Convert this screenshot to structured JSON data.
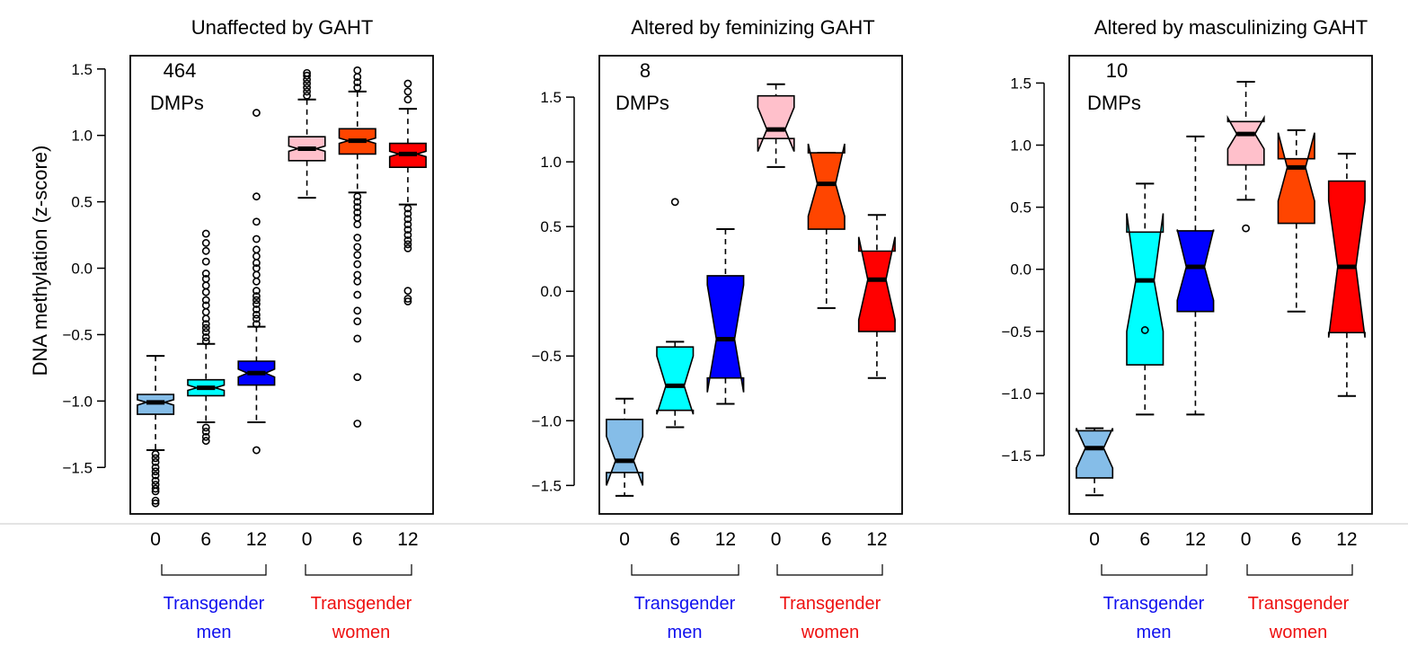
{
  "ylabel": "DNA methylation (z-score)",
  "group_labels": [
    {
      "line1": "Transgender",
      "line2": "men",
      "color": "#1010ee"
    },
    {
      "line1": "Transgender",
      "line2": "women",
      "color": "#ee1010"
    }
  ],
  "box_colors": [
    "#85bde8",
    "#00ffff",
    "#0000ff",
    "#ffc0cb",
    "#ff4500",
    "#ff0000"
  ],
  "chart_data": [
    {
      "type": "box",
      "title": "Unaffected by GAHT",
      "annotation": {
        "number": "464",
        "text": "DMPs"
      },
      "categories": [
        "0",
        "6",
        "12",
        "0",
        "6",
        "12"
      ],
      "yticks": [
        -1.5,
        -1.0,
        -0.5,
        0.0,
        0.5,
        1.0,
        1.5
      ],
      "ylim": [
        -1.85,
        1.6
      ],
      "boxes": [
        {
          "group": "Transgender men",
          "month": "0",
          "q1": -1.1,
          "median": -1.01,
          "q3": -0.95,
          "whisker_low": -1.37,
          "whisker_high": -0.66,
          "notch": [
            -1.03,
            -0.99
          ],
          "outliers": [
            -1.4,
            -1.43,
            -1.46,
            -1.5,
            -1.53,
            -1.56,
            -1.6,
            -1.63,
            -1.66,
            -1.68,
            -1.75,
            -1.77
          ]
        },
        {
          "group": "Transgender men",
          "month": "6",
          "q1": -0.96,
          "median": -0.9,
          "q3": -0.84,
          "whisker_low": -1.16,
          "whisker_high": -0.57,
          "notch": [
            -0.92,
            -0.88
          ],
          "outliers": [
            -1.2,
            -1.23,
            -1.27,
            -1.3,
            -0.55,
            -0.52,
            -0.48,
            -0.45,
            -0.42,
            -0.38,
            -0.33,
            -0.28,
            -0.24,
            -0.18,
            -0.13,
            -0.08,
            -0.04,
            0.05,
            0.13,
            0.19,
            0.26
          ]
        },
        {
          "group": "Transgender men",
          "month": "12",
          "q1": -0.88,
          "median": -0.79,
          "q3": -0.7,
          "whisker_low": -1.16,
          "whisker_high": -0.44,
          "notch": [
            -0.82,
            -0.76
          ],
          "outliers": [
            -1.37,
            -0.42,
            -0.38,
            -0.35,
            -0.31,
            -0.27,
            -0.24,
            -0.21,
            -0.17,
            -0.1,
            -0.05,
            0.0,
            0.04,
            0.09,
            0.14,
            0.22,
            0.35,
            0.54,
            1.17
          ]
        },
        {
          "group": "Transgender women",
          "month": "0",
          "q1": 0.81,
          "median": 0.9,
          "q3": 0.99,
          "whisker_low": 0.53,
          "whisker_high": 1.27,
          "notch": [
            0.88,
            0.92
          ],
          "outliers": [
            1.3,
            1.33,
            1.36,
            1.39,
            1.42,
            1.45,
            1.47
          ]
        },
        {
          "group": "Transgender women",
          "month": "6",
          "q1": 0.86,
          "median": 0.96,
          "q3": 1.05,
          "whisker_low": 0.57,
          "whisker_high": 1.33,
          "notch": [
            0.94,
            0.98
          ],
          "outliers": [
            1.36,
            1.4,
            1.44,
            1.49,
            0.54,
            0.5,
            0.46,
            0.42,
            0.38,
            0.33,
            0.23,
            0.16,
            0.1,
            0.03,
            -0.05,
            -0.1,
            -0.2,
            -0.32,
            -0.4,
            -0.53,
            -0.82,
            -1.17
          ]
        },
        {
          "group": "Transgender women",
          "month": "12",
          "q1": 0.76,
          "median": 0.86,
          "q3": 0.94,
          "whisker_low": 0.48,
          "whisker_high": 1.2,
          "notch": [
            0.84,
            0.88
          ],
          "outliers": [
            1.27,
            1.33,
            1.39,
            0.45,
            0.41,
            0.37,
            0.33,
            0.29,
            0.25,
            0.21,
            0.18,
            0.15,
            -0.17,
            -0.23,
            -0.25
          ]
        }
      ]
    },
    {
      "type": "box",
      "title": "Altered by feminizing GAHT",
      "annotation": {
        "number": "8",
        "text": "DMPs"
      },
      "categories": [
        "0",
        "6",
        "12",
        "0",
        "6",
        "12"
      ],
      "yticks": [
        -1.5,
        -1.0,
        -0.5,
        0.0,
        0.5,
        1.0,
        1.5
      ],
      "ylim": [
        -1.72,
        1.82
      ],
      "boxes": [
        {
          "group": "Transgender men",
          "month": "0",
          "q1": -1.4,
          "median": -1.31,
          "q3": -0.99,
          "whisker_low": -1.58,
          "whisker_high": -0.83,
          "notch": [
            -1.5,
            -1.12
          ],
          "outliers": []
        },
        {
          "group": "Transgender men",
          "month": "6",
          "q1": -0.92,
          "median": -0.73,
          "q3": -0.43,
          "whisker_low": -1.05,
          "whisker_high": -0.39,
          "notch": [
            -0.95,
            -0.5
          ],
          "outliers": [
            0.69
          ]
        },
        {
          "group": "Transgender men",
          "month": "12",
          "q1": -0.67,
          "median": -0.37,
          "q3": 0.12,
          "whisker_low": -0.87,
          "whisker_high": 0.48,
          "notch": [
            -0.78,
            0.05
          ],
          "outliers": []
        },
        {
          "group": "Transgender women",
          "month": "0",
          "q1": 1.18,
          "median": 1.25,
          "q3": 1.51,
          "whisker_low": 0.96,
          "whisker_high": 1.6,
          "notch": [
            1.08,
            1.42
          ],
          "outliers": []
        },
        {
          "group": "Transgender women",
          "month": "6",
          "q1": 0.48,
          "median": 0.83,
          "q3": 1.07,
          "whisker_low": -0.13,
          "whisker_high": 1.07,
          "notch": [
            0.58,
            1.14
          ],
          "outliers": []
        },
        {
          "group": "Transgender women",
          "month": "12",
          "q1": -0.31,
          "median": 0.09,
          "q3": 0.31,
          "whisker_low": -0.67,
          "whisker_high": 0.59,
          "notch": [
            -0.22,
            0.42
          ],
          "outliers": []
        }
      ]
    },
    {
      "type": "box",
      "title": "Altered by masculinizing GAHT",
      "annotation": {
        "number": "10",
        "text": "DMPs"
      },
      "categories": [
        "0",
        "6",
        "12",
        "0",
        "6",
        "12"
      ],
      "yticks": [
        -1.5,
        -1.0,
        -0.5,
        0.0,
        0.5,
        1.0,
        1.5
      ],
      "ylim": [
        -1.97,
        1.72
      ],
      "boxes": [
        {
          "group": "Transgender men",
          "month": "0",
          "q1": -1.68,
          "median": -1.44,
          "q3": -1.3,
          "whisker_low": -1.82,
          "whisker_high": -1.28,
          "notch": [
            -1.6,
            -1.28
          ],
          "outliers": []
        },
        {
          "group": "Transgender men",
          "month": "6",
          "q1": -0.77,
          "median": -0.09,
          "q3": 0.3,
          "whisker_low": -1.17,
          "whisker_high": 0.69,
          "notch": [
            -0.5,
            0.45
          ],
          "outliers": [
            -0.49
          ]
        },
        {
          "group": "Transgender men",
          "month": "12",
          "q1": -0.34,
          "median": 0.02,
          "q3": 0.31,
          "whisker_low": -1.17,
          "whisker_high": 1.07,
          "notch": [
            -0.25,
            0.32
          ],
          "outliers": []
        },
        {
          "group": "Transgender women",
          "month": "0",
          "q1": 0.84,
          "median": 1.09,
          "q3": 1.19,
          "whisker_low": 0.56,
          "whisker_high": 1.51,
          "notch": [
            0.97,
            1.22
          ],
          "outliers": [
            0.33
          ]
        },
        {
          "group": "Transgender women",
          "month": "6",
          "q1": 0.37,
          "median": 0.82,
          "q3": 0.89,
          "whisker_low": -0.34,
          "whisker_high": 1.12,
          "notch": [
            0.55,
            1.1
          ],
          "outliers": []
        },
        {
          "group": "Transgender women",
          "month": "12",
          "q1": -0.51,
          "median": 0.02,
          "q3": 0.71,
          "whisker_low": -1.02,
          "whisker_high": 0.93,
          "notch": [
            -0.55,
            0.55
          ],
          "outliers": []
        }
      ]
    }
  ]
}
